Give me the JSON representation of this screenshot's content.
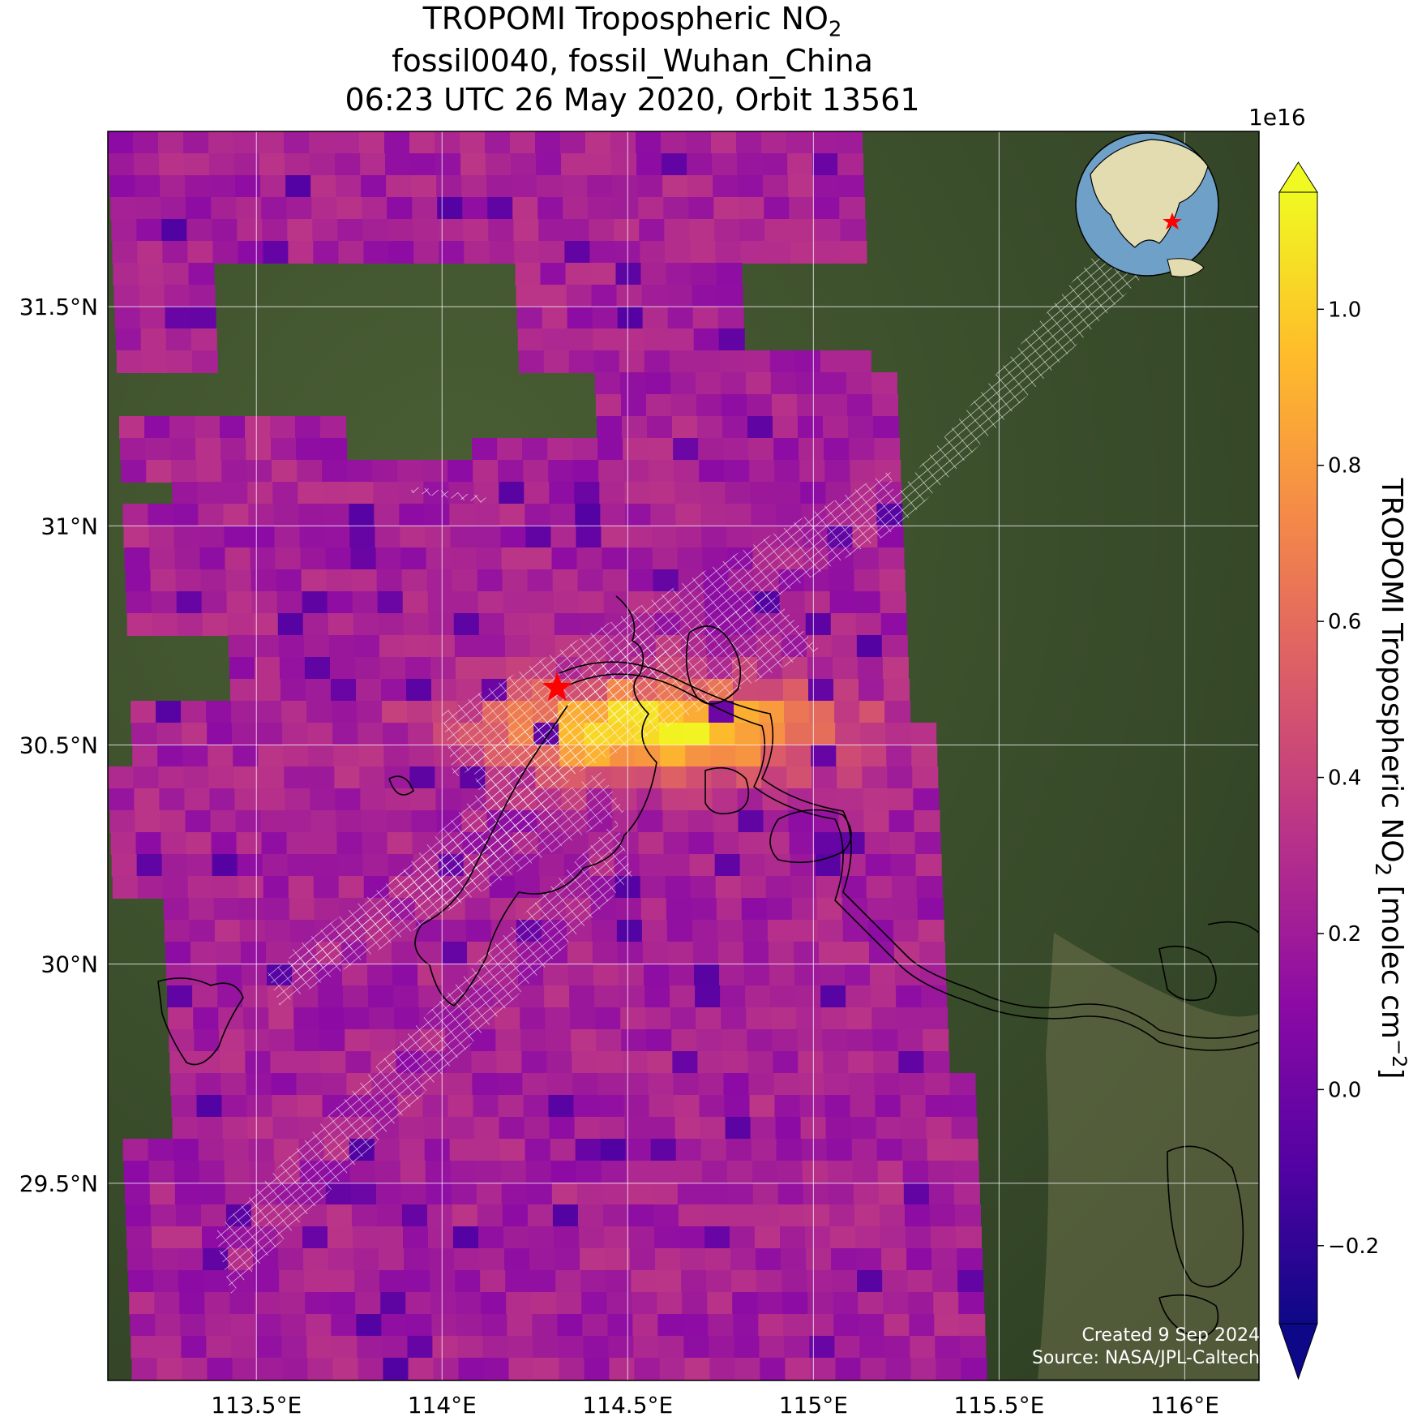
{
  "title": {
    "line1_prefix": "TROPOMI Tropospheric NO",
    "line1_sub": "2",
    "line2": "fossil0040, fossil_Wuhan_China",
    "line3": "06:23 UTC 26 May 2020, Orbit 13561"
  },
  "axes": {
    "lat_ticks": [
      {
        "value": 31.5,
        "label": "31.5°N"
      },
      {
        "value": 31.0,
        "label": "31°N"
      },
      {
        "value": 30.5,
        "label": "30.5°N"
      },
      {
        "value": 30.0,
        "label": "30°N"
      },
      {
        "value": 29.5,
        "label": "29.5°N"
      }
    ],
    "lon_ticks": [
      {
        "value": 113.5,
        "label": "113.5°E"
      },
      {
        "value": 114.0,
        "label": "114°E"
      },
      {
        "value": 114.5,
        "label": "114.5°E"
      },
      {
        "value": 115.0,
        "label": "115°E"
      },
      {
        "value": 115.5,
        "label": "115.5°E"
      },
      {
        "value": 116.0,
        "label": "116°E"
      }
    ],
    "lon_range": [
      113.1,
      116.2
    ],
    "lat_range": [
      29.05,
      31.9
    ],
    "grid": true
  },
  "colorbar": {
    "label_prefix": "TROPOMI Tropospheric NO",
    "label_sub": "2",
    "label_suffix": " [molec cm",
    "label_sup": "−2",
    "label_end": "]",
    "exponent": "1e16",
    "range": [
      -0.3,
      1.15
    ],
    "ticks": [
      {
        "value": 1.0,
        "label": "1.0"
      },
      {
        "value": 0.8,
        "label": "0.8"
      },
      {
        "value": 0.6,
        "label": "0.6"
      },
      {
        "value": 0.4,
        "label": "0.4"
      },
      {
        "value": 0.2,
        "label": "0.2"
      },
      {
        "value": 0.0,
        "label": "0.0"
      },
      {
        "value": -0.2,
        "label": "−0.2"
      }
    ],
    "colormap": "plasma",
    "colors": [
      "#0d0887",
      "#5302a3",
      "#8b0aa5",
      "#b83289",
      "#db5c68",
      "#f48849",
      "#febd2a",
      "#f0f921"
    ]
  },
  "marker": {
    "name": "fossil_Wuhan_China",
    "lon": 114.31,
    "lat": 30.63,
    "color": "#ff0000"
  },
  "inset_globe": {
    "ocean_color": "#6fa0c8",
    "land_color": "#e3dcb0",
    "marker_color": "#ff0000"
  },
  "footer": {
    "created": "Created 9 Sep 2024",
    "source": "Source: NASA/JPL-Caltech"
  }
}
